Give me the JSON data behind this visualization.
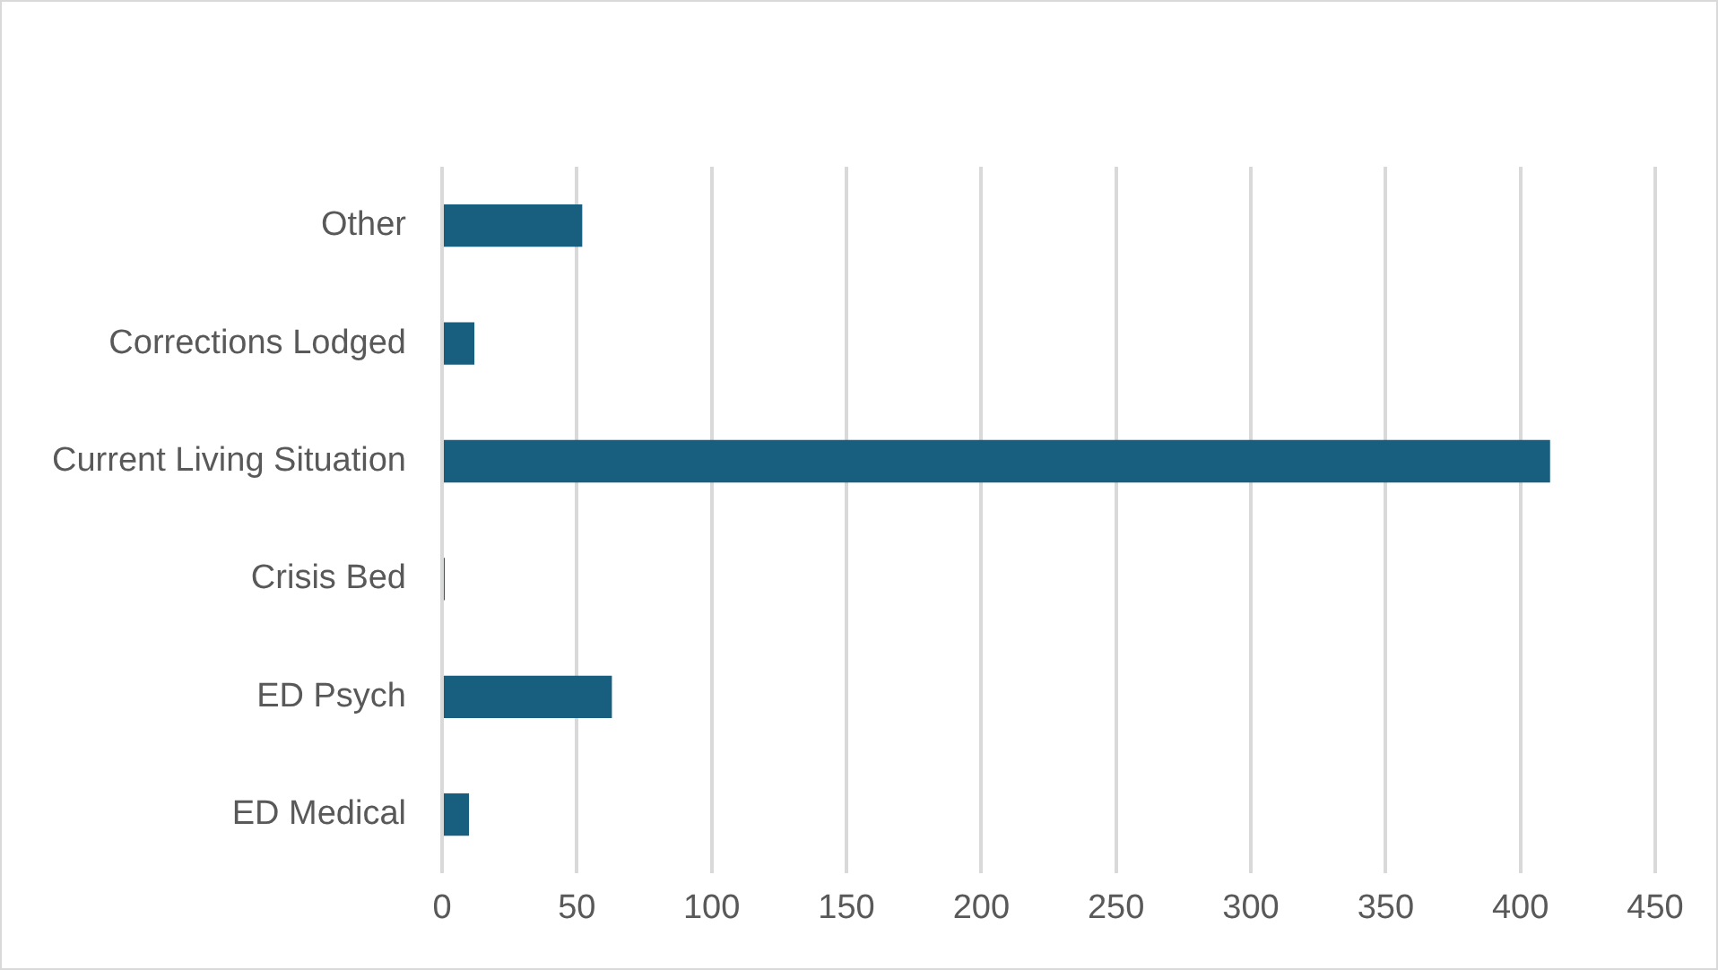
{
  "chart_data": {
    "type": "bar",
    "orientation": "horizontal",
    "categories": [
      "Other",
      "Corrections Lodged",
      "Current Living Situation",
      "Crisis Bed",
      "ED Psych",
      "ED Medical"
    ],
    "values": [
      52,
      12,
      411,
      1,
      63,
      10
    ],
    "color": "#185e7f",
    "xlim": [
      0,
      450
    ],
    "xticks": [
      0,
      50,
      100,
      150,
      200,
      250,
      300,
      350,
      400,
      450
    ],
    "grid": "x",
    "legend": false
  }
}
